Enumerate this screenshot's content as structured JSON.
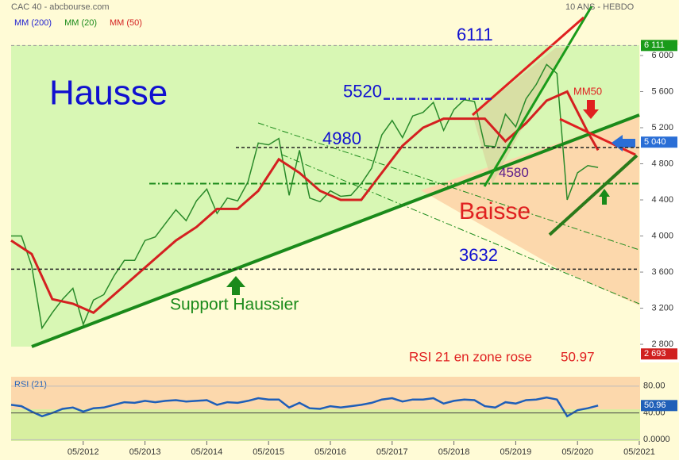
{
  "header": {
    "title": "CAC 40 - abcbourse.com",
    "period": "10 ANS - HEBDO"
  },
  "chart_data": [
    {
      "type": "line",
      "legend": [
        {
          "name": "MM (200)",
          "color": "#1f1fd0"
        },
        {
          "name": "MM (20)",
          "color": "#1a8a1a"
        },
        {
          "name": "MM (50)",
          "color": "#d42020"
        }
      ],
      "xlim": [
        "2011-03",
        "2021-05"
      ],
      "ylim": [
        2660,
        6114
      ],
      "yticks": [
        {
          "value": 6000,
          "label": "6 000"
        },
        {
          "value": 5600,
          "label": "5 600"
        },
        {
          "value": 5200,
          "label": "5 200"
        },
        {
          "value": 4800,
          "label": "4 800"
        },
        {
          "value": 4400,
          "label": "4 400"
        },
        {
          "value": 4000,
          "label": "4 000"
        },
        {
          "value": 3600,
          "label": "3 600"
        },
        {
          "value": 3200,
          "label": "3 200"
        },
        {
          "value": 2800,
          "label": "2 800"
        }
      ],
      "price": {
        "color": "#2a8a2a",
        "x": [
          "2011-03",
          "2011-05",
          "2011-07",
          "2011-09",
          "2011-11",
          "2012-01",
          "2012-03",
          "2012-05",
          "2012-07",
          "2012-09",
          "2012-11",
          "2013-01",
          "2013-03",
          "2013-05",
          "2013-07",
          "2013-09",
          "2013-11",
          "2014-01",
          "2014-03",
          "2014-05",
          "2014-07",
          "2014-09",
          "2014-11",
          "2015-01",
          "2015-03",
          "2015-05",
          "2015-07",
          "2015-09",
          "2015-11",
          "2016-01",
          "2016-03",
          "2016-05",
          "2016-07",
          "2016-09",
          "2016-11",
          "2017-01",
          "2017-03",
          "2017-05",
          "2017-07",
          "2017-09",
          "2017-11",
          "2018-01",
          "2018-03",
          "2018-05",
          "2018-07",
          "2018-09",
          "2018-11",
          "2019-01",
          "2019-03",
          "2019-05",
          "2019-07",
          "2019-09",
          "2019-11",
          "2020-01",
          "2020-03",
          "2020-05",
          "2020-07",
          "2020-09"
        ],
        "values": [
          4000,
          4000,
          3670,
          2980,
          3150,
          3300,
          3420,
          3020,
          3290,
          3350,
          3560,
          3730,
          3730,
          3950,
          3990,
          4140,
          4290,
          4170,
          4390,
          4520,
          4250,
          4420,
          4390,
          4600,
          5030,
          5010,
          5080,
          4450,
          4950,
          4420,
          4380,
          4500,
          4440,
          4450,
          4580,
          4750,
          5120,
          5280,
          5090,
          5330,
          5370,
          5480,
          5170,
          5400,
          5510,
          5490,
          5000,
          4990,
          5350,
          5210,
          5520,
          5680,
          5900,
          5800,
          4400,
          4700,
          4780,
          4760
        ]
      },
      "ma50": {
        "color": "#d42020",
        "x": [
          "2011-03",
          "2011-07",
          "2011-11",
          "2012-03",
          "2012-07",
          "2012-11",
          "2013-03",
          "2013-07",
          "2013-11",
          "2014-03",
          "2014-07",
          "2014-11",
          "2015-03",
          "2015-07",
          "2015-11",
          "2016-03",
          "2016-07",
          "2016-11",
          "2017-03",
          "2017-07",
          "2017-11",
          "2018-03",
          "2018-07",
          "2018-11",
          "2019-03",
          "2019-07",
          "2019-11",
          "2020-03",
          "2020-07",
          "2020-09"
        ],
        "values": [
          3950,
          3800,
          3300,
          3250,
          3150,
          3350,
          3550,
          3750,
          3950,
          4100,
          4300,
          4300,
          4500,
          4850,
          4700,
          4500,
          4400,
          4400,
          4700,
          5000,
          5200,
          5300,
          5300,
          5300,
          5050,
          5250,
          5500,
          5600,
          5150,
          4950
        ]
      },
      "levels": [
        6111,
        5520,
        4980,
        4580,
        3632
      ],
      "axis_markers": [
        {
          "value": 6111,
          "label": "6 111",
          "color": "#1a9b1a"
        },
        {
          "value": 5040,
          "label": "5 040",
          "color": "#2a6ed6"
        },
        {
          "value": 2693,
          "label": "2 693",
          "color": "#d02020"
        }
      ],
      "annotations": {
        "hausse": "Hausse",
        "baisse": "Baisse",
        "mm50": "MM50",
        "support": "Support Haussier",
        "rsi_note": "RSI 21 en zone rose",
        "rsi_value": 50.97
      }
    },
    {
      "type": "line",
      "title": "RSI (21)",
      "xlim": [
        "2011-03",
        "2021-05"
      ],
      "xticks": [
        {
          "value": "2012-05",
          "label": "05/2012"
        },
        {
          "value": "2013-05",
          "label": "05/2013"
        },
        {
          "value": "2014-05",
          "label": "05/2014"
        },
        {
          "value": "2015-05",
          "label": "05/2015"
        },
        {
          "value": "2016-05",
          "label": "05/2016"
        },
        {
          "value": "2017-05",
          "label": "05/2017"
        },
        {
          "value": "2018-05",
          "label": "05/2018"
        },
        {
          "value": "2019-05",
          "label": "05/2019"
        },
        {
          "value": "2020-05",
          "label": "05/2020"
        },
        {
          "value": "2021-05",
          "label": "05/2021"
        }
      ],
      "ylim": [
        -2,
        94
      ],
      "yticks": [
        {
          "value": 80,
          "label": "80.00"
        },
        {
          "value": 40,
          "label": "40.00"
        },
        {
          "value": 0,
          "label": "0.0000"
        }
      ],
      "series": [
        {
          "color": "#1f5fb8",
          "x": [
            "2011-03",
            "2011-05",
            "2011-07",
            "2011-09",
            "2011-11",
            "2012-01",
            "2012-03",
            "2012-05",
            "2012-07",
            "2012-09",
            "2012-11",
            "2013-01",
            "2013-03",
            "2013-05",
            "2013-07",
            "2013-09",
            "2013-11",
            "2014-01",
            "2014-03",
            "2014-05",
            "2014-07",
            "2014-09",
            "2014-11",
            "2015-01",
            "2015-03",
            "2015-05",
            "2015-07",
            "2015-09",
            "2015-11",
            "2016-01",
            "2016-03",
            "2016-05",
            "2016-07",
            "2016-09",
            "2016-11",
            "2017-01",
            "2017-03",
            "2017-05",
            "2017-07",
            "2017-09",
            "2017-11",
            "2018-01",
            "2018-03",
            "2018-05",
            "2018-07",
            "2018-09",
            "2018-11",
            "2019-01",
            "2019-03",
            "2019-05",
            "2019-07",
            "2019-09",
            "2019-11",
            "2020-01",
            "2020-03",
            "2020-05",
            "2020-07",
            "2020-09"
          ],
          "values": [
            52,
            50,
            42,
            35,
            40,
            46,
            48,
            42,
            47,
            48,
            52,
            56,
            55,
            58,
            56,
            58,
            59,
            57,
            58,
            59,
            52,
            56,
            55,
            58,
            62,
            60,
            60,
            48,
            55,
            47,
            46,
            50,
            48,
            50,
            52,
            55,
            60,
            62,
            57,
            60,
            60,
            62,
            54,
            58,
            60,
            59,
            50,
            48,
            56,
            54,
            59,
            60,
            63,
            60,
            35,
            44,
            47,
            50.96
          ]
        }
      ]
    }
  ]
}
